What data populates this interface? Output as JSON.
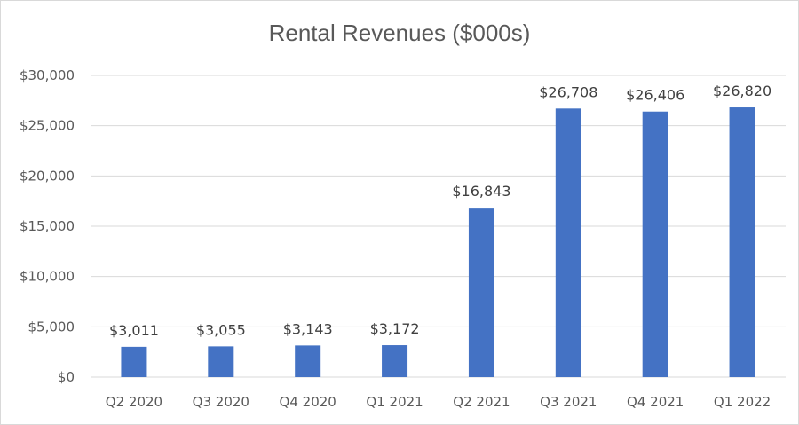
{
  "chart_data": {
    "type": "bar",
    "title": "Rental Revenues ($000s)",
    "xlabel": "",
    "ylabel": "",
    "categories": [
      "Q2 2020",
      "Q3 2020",
      "Q4 2020",
      "Q1 2021",
      "Q2 2021",
      "Q3 2021",
      "Q4 2021",
      "Q1 2022"
    ],
    "values": [
      3011,
      3055,
      3143,
      3172,
      16843,
      26708,
      26406,
      26820
    ],
    "data_labels": [
      "$3,011",
      "$3,055",
      "$3,143",
      "$3,172",
      "$16,843",
      "$26,708",
      "$26,406",
      "$26,820"
    ],
    "ylim": [
      0,
      30000
    ],
    "yticks": [
      0,
      5000,
      10000,
      15000,
      20000,
      25000,
      30000
    ],
    "ytick_labels": [
      "$0",
      "$5,000",
      "$10,000",
      "$15,000",
      "$20,000",
      "$25,000",
      "$30,000"
    ],
    "grid": true,
    "legend": "none",
    "colors": {
      "bar": "#4472C4",
      "grid": "#d9d9d9",
      "text": "#595959"
    }
  }
}
